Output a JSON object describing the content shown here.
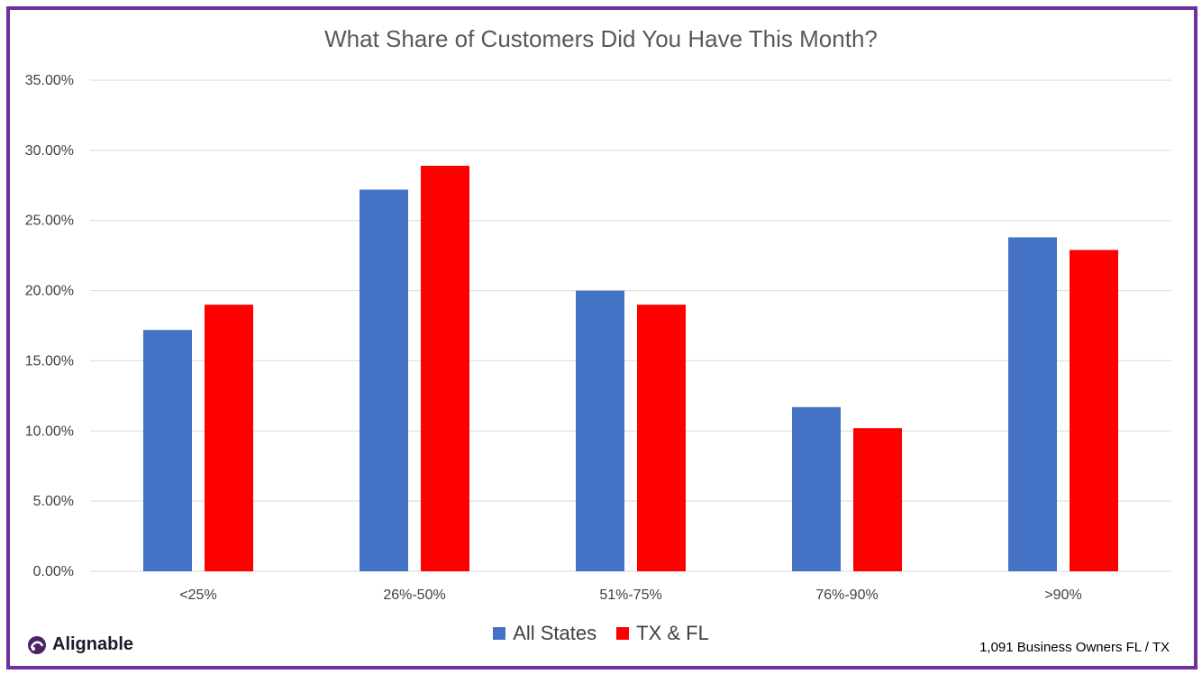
{
  "colors": {
    "frame": "#7030a0",
    "all_states": "#4472c4",
    "tx_fl": "#ff0000",
    "grid": "#d9d9d9"
  },
  "brand": {
    "name": "Alignable"
  },
  "footnote": "1,091 Business Owners FL / TX",
  "chart_data": {
    "type": "bar",
    "title": "What Share of Customers Did You Have This Month?",
    "xlabel": "",
    "ylabel": "",
    "categories": [
      "<25%",
      "26%-50%",
      "51%-75%",
      "76%-90%",
      ">90%"
    ],
    "series": [
      {
        "name": "All States",
        "values": [
          17.2,
          27.2,
          20.0,
          11.7,
          23.8
        ]
      },
      {
        "name": "TX & FL",
        "values": [
          19.0,
          28.9,
          19.0,
          10.2,
          22.9
        ]
      }
    ],
    "ylim": [
      0,
      35
    ],
    "yticks": [
      "0.00%",
      "5.00%",
      "10.00%",
      "15.00%",
      "20.00%",
      "25.00%",
      "30.00%",
      "35.00%"
    ],
    "grid": true,
    "legend": "bottom"
  }
}
